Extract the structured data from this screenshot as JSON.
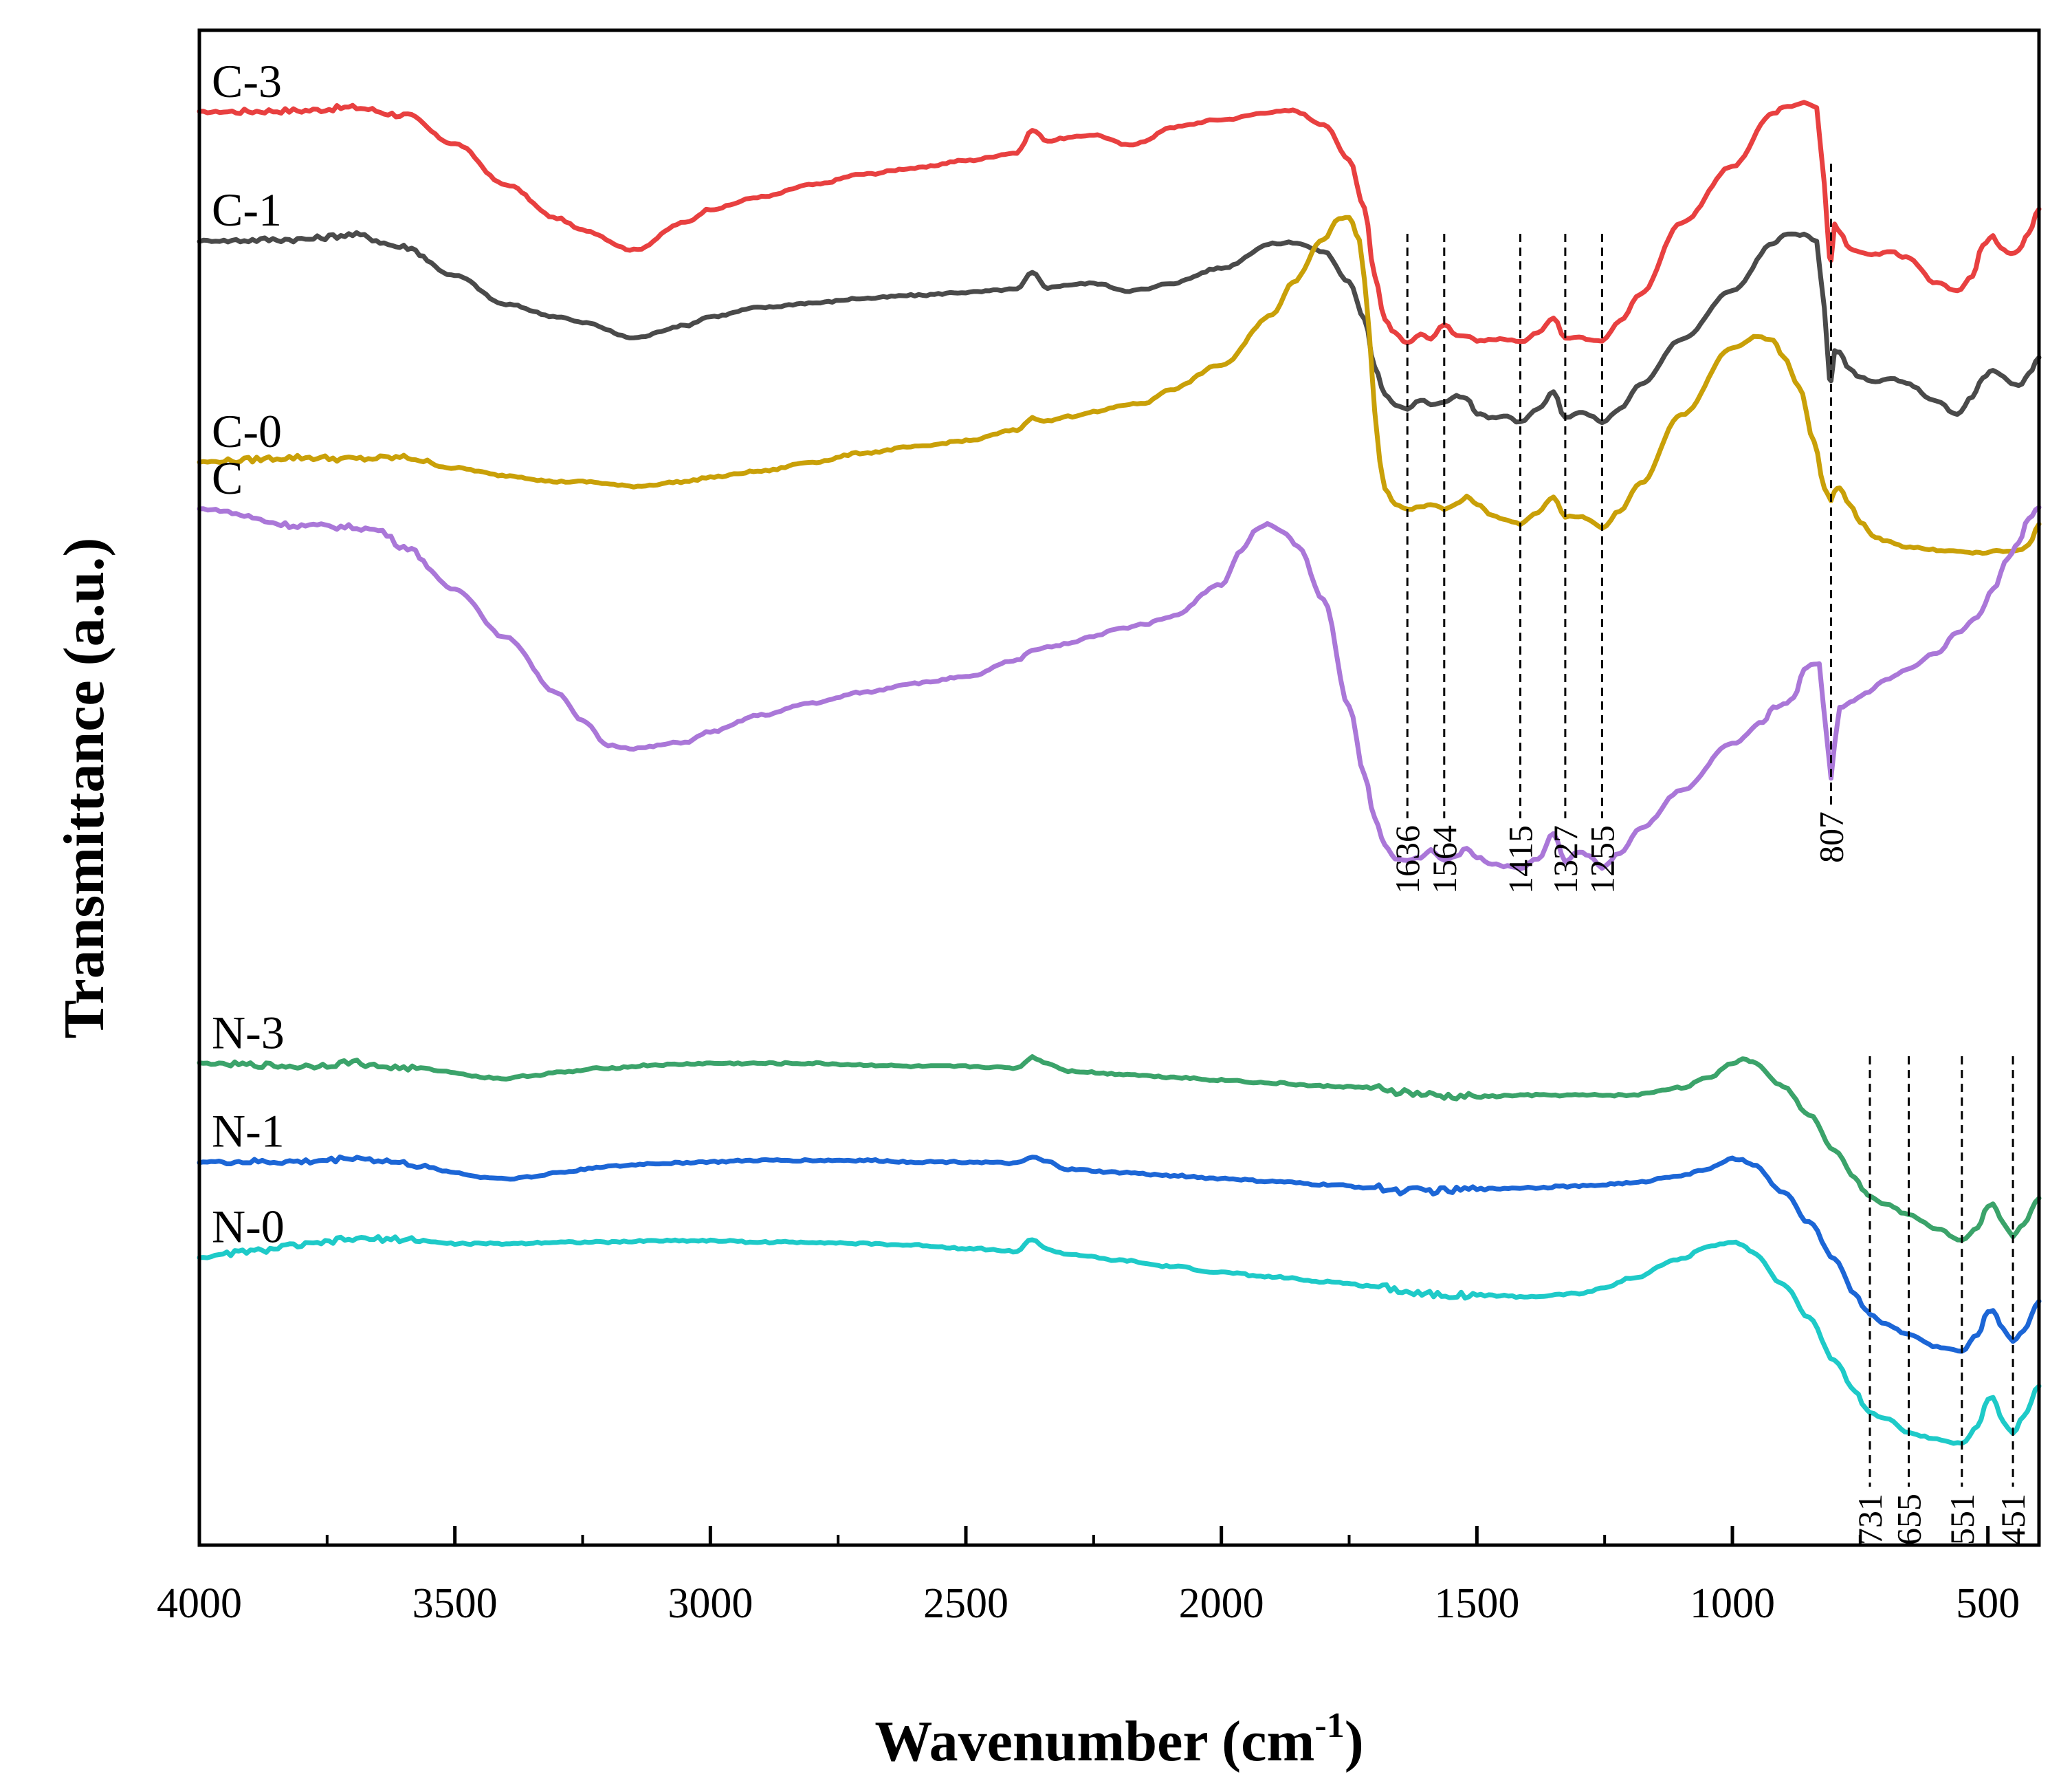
{
  "chart_data": {
    "type": "line",
    "title": "",
    "xlabel": "Wavenumber (cm",
    "xlabel_sup": "-1",
    "xlabel_close": ")",
    "ylabel": "Transmittance (a.u.)",
    "xlim": [
      4000,
      400
    ],
    "ylim": [
      0,
      100
    ],
    "x_reversed": true,
    "x_ticks": [
      4000,
      3500,
      3000,
      2500,
      2000,
      1500,
      1000,
      500
    ],
    "x_tick_labels": [
      "4000",
      "3500",
      "3000",
      "2500",
      "2000",
      "1500",
      "1000",
      "500"
    ],
    "x_minor_ticks": [
      3750,
      3250,
      2750,
      2250,
      1750,
      1250,
      750
    ],
    "grid": false,
    "legend": "labels placed at the left end of each curve",
    "series": [
      {
        "name": "C-3",
        "color": "#e84040",
        "x": [
          4000,
          3800,
          3700,
          3600,
          3500,
          3400,
          3300,
          3250,
          3150,
          3050,
          3000,
          2900,
          2800,
          2700,
          2600,
          2500,
          2400,
          2370,
          2340,
          2300,
          2250,
          2180,
          2150,
          2100,
          2000,
          1900,
          1860,
          1800,
          1750,
          1720,
          1700,
          1680,
          1660,
          1636,
          1610,
          1590,
          1564,
          1540,
          1520,
          1500,
          1470,
          1440,
          1415,
          1380,
          1350,
          1327,
          1300,
          1280,
          1255,
          1220,
          1180,
          1100,
          1000,
          920,
          900,
          860,
          835,
          820,
          810,
          807,
          800,
          790,
          770,
          750,
          720,
          690,
          660,
          600,
          560,
          530,
          510,
          490,
          475,
          455,
          440,
          420,
          400
        ],
        "values": [
          94.6,
          94.7,
          94.9,
          94.4,
          92.5,
          89.8,
          87.6,
          86.8,
          85.5,
          87.3,
          88.2,
          89.0,
          89.8,
          90.5,
          90.9,
          91.4,
          91.9,
          93.4,
          92.7,
          92.9,
          93.1,
          92.4,
          92.7,
          93.6,
          94.1,
          94.6,
          94.7,
          93.8,
          91.5,
          88.3,
          83.8,
          80.9,
          80.0,
          79.3,
          80.0,
          79.6,
          80.6,
          79.8,
          79.8,
          79.5,
          79.6,
          79.6,
          79.4,
          80.1,
          81.0,
          79.7,
          79.8,
          79.6,
          79.5,
          80.8,
          82.6,
          87.3,
          91.0,
          94.5,
          94.9,
          95.2,
          94.9,
          89.8,
          85.0,
          84.8,
          87.2,
          86.7,
          85.6,
          85.3,
          85.2,
          85.4,
          85.0,
          83.3,
          82.8,
          83.8,
          85.8,
          86.4,
          85.6,
          85.2,
          85.5,
          86.6,
          88.2
        ]
      },
      {
        "name": "C-1",
        "color": "#4a4a4a",
        "x": [
          4000,
          3800,
          3700,
          3600,
          3500,
          3400,
          3300,
          3250,
          3150,
          3050,
          3000,
          2900,
          2800,
          2700,
          2600,
          2500,
          2400,
          2370,
          2340,
          2300,
          2250,
          2180,
          2150,
          2100,
          2000,
          1900,
          1860,
          1800,
          1750,
          1720,
          1700,
          1680,
          1660,
          1636,
          1610,
          1590,
          1564,
          1540,
          1520,
          1500,
          1470,
          1440,
          1415,
          1380,
          1350,
          1327,
          1300,
          1280,
          1255,
          1220,
          1180,
          1100,
          1000,
          920,
          900,
          860,
          835,
          820,
          810,
          807,
          800,
          790,
          770,
          750,
          720,
          690,
          660,
          600,
          560,
          530,
          510,
          490,
          475,
          455,
          440,
          420,
          400
        ],
        "values": [
          86.1,
          86.2,
          86.5,
          85.7,
          83.8,
          81.9,
          81.1,
          80.7,
          79.7,
          80.5,
          81.1,
          81.7,
          82.0,
          82.3,
          82.5,
          82.7,
          82.9,
          84.0,
          83.0,
          83.2,
          83.3,
          82.8,
          82.9,
          83.3,
          84.3,
          85.9,
          86.0,
          85.4,
          83.4,
          80.9,
          77.8,
          76.0,
          75.3,
          75.0,
          75.6,
          75.3,
          75.4,
          75.9,
          75.7,
          74.7,
          74.4,
          74.5,
          74.1,
          75.0,
          76.1,
          74.4,
          74.8,
          74.6,
          74.1,
          75.0,
          76.6,
          79.6,
          82.8,
          85.9,
          86.5,
          86.5,
          86.1,
          81.6,
          77.0,
          76.9,
          78.8,
          78.7,
          77.6,
          77.1,
          76.8,
          77.0,
          76.7,
          75.5,
          74.6,
          75.8,
          77.0,
          77.6,
          77.3,
          76.7,
          76.5,
          77.3,
          78.4
        ]
      },
      {
        "name": "C-0",
        "color": "#c9a008",
        "x": [
          4000,
          3800,
          3700,
          3600,
          3500,
          3400,
          3300,
          3250,
          3150,
          3050,
          3000,
          2900,
          2800,
          2700,
          2600,
          2500,
          2400,
          2370,
          2340,
          2300,
          2250,
          2180,
          2150,
          2100,
          2000,
          1900,
          1860,
          1800,
          1770,
          1750,
          1730,
          1720,
          1710,
          1700,
          1690,
          1680,
          1660,
          1636,
          1610,
          1590,
          1564,
          1540,
          1520,
          1500,
          1470,
          1440,
          1415,
          1380,
          1350,
          1327,
          1300,
          1280,
          1255,
          1220,
          1180,
          1100,
          1000,
          950,
          920,
          900,
          870,
          840,
          820,
          807,
          800,
          790,
          770,
          750,
          720,
          690,
          660,
          600,
          560,
          530,
          510,
          490,
          470,
          455,
          440,
          420,
          400
        ],
        "values": [
          71.5,
          71.8,
          71.7,
          71.8,
          71.1,
          70.6,
          70.2,
          70.2,
          69.9,
          70.2,
          70.5,
          70.9,
          71.5,
          72.1,
          72.5,
          72.9,
          73.6,
          74.4,
          74.2,
          74.5,
          74.8,
          75.3,
          75.4,
          76.3,
          77.9,
          81.2,
          83.4,
          86.2,
          87.6,
          87.7,
          86.2,
          83.5,
          79.8,
          74.8,
          71.5,
          69.7,
          68.7,
          68.4,
          68.5,
          68.7,
          68.4,
          68.7,
          69.2,
          68.7,
          68.0,
          67.6,
          67.4,
          68.2,
          69.2,
          67.9,
          67.9,
          67.7,
          67.1,
          68.3,
          70.1,
          74.6,
          79.0,
          79.8,
          79.5,
          78.4,
          76.5,
          72.9,
          69.8,
          69.0,
          69.6,
          69.8,
          68.7,
          67.5,
          66.5,
          66.2,
          65.9,
          65.7,
          65.6,
          65.5,
          65.5,
          65.6,
          65.6,
          65.6,
          65.7,
          66.0,
          67.4
        ]
      },
      {
        "name": "C",
        "color": "#aa77d8",
        "x": [
          4000,
          3800,
          3700,
          3650,
          3600,
          3500,
          3400,
          3300,
          3250,
          3200,
          3150,
          3050,
          3000,
          2900,
          2800,
          2700,
          2600,
          2500,
          2400,
          2370,
          2340,
          2300,
          2250,
          2200,
          2150,
          2100,
          2000,
          1960,
          1930,
          1910,
          1880,
          1850,
          1800,
          1750,
          1720,
          1700,
          1680,
          1660,
          1636,
          1610,
          1590,
          1564,
          1540,
          1520,
          1500,
          1470,
          1440,
          1415,
          1380,
          1350,
          1327,
          1300,
          1280,
          1255,
          1220,
          1180,
          1100,
          1000,
          940,
          920,
          900,
          880,
          860,
          840,
          830,
          815,
          807,
          800,
          790,
          770,
          740,
          700,
          660,
          600,
          560,
          520,
          490,
          460,
          440,
          420,
          400
        ],
        "values": [
          68.4,
          67.3,
          67.2,
          67.0,
          65.9,
          63.1,
          59.9,
          56.3,
          54.4,
          52.8,
          52.6,
          53.0,
          53.7,
          54.8,
          55.6,
          56.3,
          56.9,
          57.3,
          58.4,
          59.1,
          59.3,
          59.5,
          60.0,
          60.5,
          60.8,
          61.3,
          63.4,
          65.7,
          67.1,
          67.4,
          66.9,
          65.9,
          62.4,
          55.4,
          50.8,
          48.0,
          46.2,
          45.3,
          45.2,
          45.4,
          45.9,
          45.2,
          45.5,
          46.0,
          45.4,
          45.0,
          44.8,
          44.7,
          45.3,
          47.0,
          45.1,
          45.8,
          45.5,
          44.7,
          45.7,
          47.3,
          49.8,
          52.9,
          54.3,
          55.3,
          55.5,
          55.9,
          57.8,
          58.2,
          58.2,
          53.2,
          50.6,
          52.9,
          55.3,
          55.6,
          56.2,
          57.1,
          57.8,
          58.9,
          60.2,
          61.3,
          63.1,
          65.2,
          66.2,
          67.8,
          68.5
        ]
      },
      {
        "name": "N-3",
        "color": "#3ba36a",
        "x": [
          4000,
          3900,
          3800,
          3750,
          3700,
          3650,
          3600,
          3550,
          3500,
          3450,
          3400,
          3350,
          3300,
          3200,
          3100,
          3000,
          2900,
          2800,
          2700,
          2600,
          2500,
          2400,
          2370,
          2340,
          2300,
          2200,
          2100,
          2000,
          1900,
          1800,
          1700,
          1650,
          1600,
          1564,
          1500,
          1400,
          1300,
          1200,
          1100,
          1050,
          1000,
          980,
          960,
          900,
          850,
          800,
          760,
          740,
          731,
          700,
          655,
          600,
          551,
          520,
          500,
          490,
          470,
          451,
          430,
          400
        ],
        "values": [
          31.8,
          31.7,
          31.6,
          31.7,
          31.9,
          31.6,
          31.5,
          31.4,
          31.2,
          30.9,
          30.8,
          31.0,
          31.2,
          31.5,
          31.7,
          31.8,
          31.8,
          31.8,
          31.7,
          31.6,
          31.6,
          31.5,
          32.2,
          31.8,
          31.3,
          31.1,
          30.9,
          30.7,
          30.5,
          30.3,
          30.2,
          29.9,
          29.7,
          29.6,
          29.6,
          29.7,
          29.7,
          29.7,
          30.2,
          30.8,
          31.8,
          32.1,
          31.9,
          30.3,
          28.4,
          26.1,
          24.3,
          23.3,
          23.0,
          22.5,
          21.8,
          20.9,
          20.1,
          20.9,
          22.4,
          22.5,
          21.3,
          20.4,
          21.2,
          22.9
        ]
      },
      {
        "name": "N-1",
        "color": "#1c66d6",
        "x": [
          4000,
          3900,
          3800,
          3750,
          3700,
          3650,
          3600,
          3550,
          3500,
          3450,
          3400,
          3350,
          3300,
          3200,
          3100,
          3000,
          2900,
          2800,
          2700,
          2600,
          2500,
          2400,
          2370,
          2340,
          2300,
          2200,
          2100,
          2000,
          1900,
          1800,
          1700,
          1650,
          1600,
          1564,
          1500,
          1400,
          1300,
          1200,
          1100,
          1050,
          1030,
          1000,
          980,
          960,
          900,
          850,
          800,
          760,
          740,
          731,
          700,
          655,
          600,
          551,
          520,
          500,
          490,
          470,
          451,
          430,
          400
        ],
        "values": [
          25.3,
          25.3,
          25.3,
          25.4,
          25.6,
          25.4,
          25.2,
          24.9,
          24.6,
          24.3,
          24.2,
          24.3,
          24.6,
          25.0,
          25.2,
          25.3,
          25.4,
          25.4,
          25.4,
          25.3,
          25.3,
          25.2,
          25.6,
          25.3,
          24.8,
          24.6,
          24.4,
          24.2,
          24.0,
          23.8,
          23.6,
          23.4,
          23.4,
          23.4,
          23.5,
          23.6,
          23.7,
          23.9,
          24.4,
          24.8,
          25.1,
          25.5,
          25.4,
          25.1,
          23.3,
          21.3,
          18.9,
          16.6,
          15.6,
          15.2,
          14.6,
          13.9,
          13.1,
          12.8,
          13.9,
          15.4,
          15.5,
          14.3,
          13.4,
          14.2,
          16.1
        ]
      },
      {
        "name": "N-0",
        "color": "#1ecac8",
        "x": [
          4000,
          3900,
          3800,
          3700,
          3650,
          3600,
          3500,
          3400,
          3300,
          3200,
          3100,
          3000,
          2900,
          2800,
          2700,
          2600,
          2500,
          2400,
          2370,
          2340,
          2300,
          2200,
          2100,
          2000,
          1900,
          1800,
          1700,
          1600,
          1500,
          1400,
          1300,
          1250,
          1200,
          1100,
          1050,
          1000,
          980,
          960,
          900,
          850,
          800,
          760,
          740,
          731,
          700,
          655,
          600,
          551,
          520,
          500,
          490,
          470,
          451,
          430,
          400
        ],
        "values": [
          19.0,
          19.4,
          19.8,
          20.2,
          20.2,
          20.2,
          19.9,
          19.9,
          20.0,
          20.0,
          20.1,
          20.1,
          20.0,
          20.0,
          19.9,
          19.8,
          19.6,
          19.4,
          20.2,
          19.5,
          19.2,
          18.8,
          18.4,
          18.0,
          17.7,
          17.4,
          17.1,
          16.6,
          16.5,
          16.4,
          16.6,
          17.0,
          17.6,
          18.9,
          19.7,
          20.0,
          19.8,
          19.3,
          17.2,
          15.0,
          12.2,
          10.2,
          9.1,
          8.7,
          8.4,
          7.4,
          7.0,
          6.7,
          7.8,
          9.6,
          9.7,
          8.1,
          7.4,
          8.5,
          10.5
        ]
      }
    ],
    "peak_markers_upper": [
      {
        "x": 1636,
        "label": "1636"
      },
      {
        "x": 1564,
        "label": "1564"
      },
      {
        "x": 1415,
        "label": "1415"
      },
      {
        "x": 1327,
        "label": "1327"
      },
      {
        "x": 1255,
        "label": "1255"
      },
      {
        "x": 807,
        "label": "807"
      }
    ],
    "peak_markers_lower": [
      {
        "x": 731,
        "label": "731"
      },
      {
        "x": 655,
        "label": "655"
      },
      {
        "x": 551,
        "label": "551"
      },
      {
        "x": 451,
        "label": "451"
      }
    ]
  }
}
